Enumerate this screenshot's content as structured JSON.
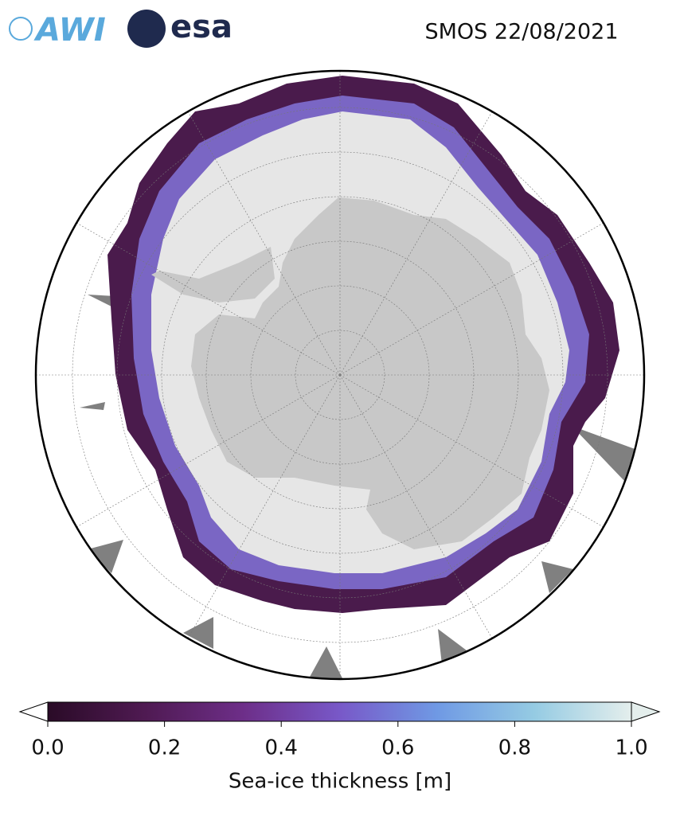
{
  "header": {
    "title": "SMOS 22/08/2021",
    "logos": [
      "AWI",
      "esa"
    ]
  },
  "colorbar": {
    "label": "Sea-ice thickness [m]",
    "lim": [
      0,
      1
    ],
    "ticks": [
      {
        "value": 0,
        "label": "0.0"
      },
      {
        "value": 0.2,
        "label": "0.2"
      },
      {
        "value": 0.4,
        "label": "0.4"
      },
      {
        "value": 0.6,
        "label": "0.6"
      },
      {
        "value": 0.8,
        "label": "0.8"
      },
      {
        "value": 1,
        "label": "1.0"
      }
    ],
    "colormap": [
      "#2a0b27",
      "#4f1a52",
      "#6d2e88",
      "#7858c8",
      "#6f99e4",
      "#95cbe3",
      "#e4eeec"
    ]
  }
}
